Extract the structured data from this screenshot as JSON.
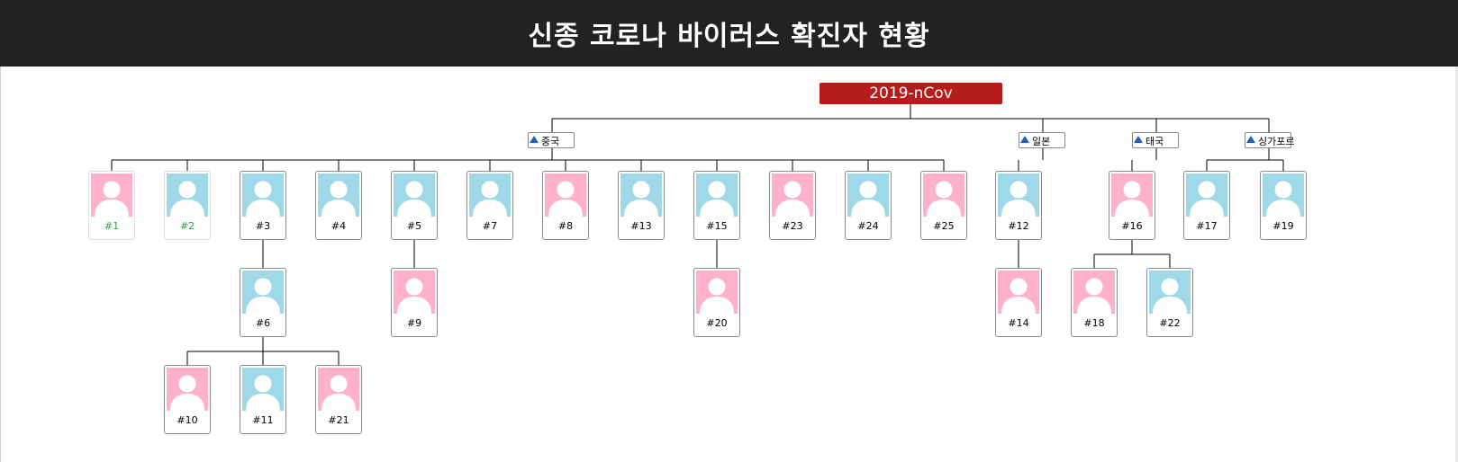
{
  "header": {
    "title": "신종 코로나 바이러스 확진자 현황"
  },
  "colors": {
    "header_bg": "#222222",
    "root_bg": "#b61c1c",
    "male_bg": "#9fd8e6",
    "female_bg": "#ffb1c9",
    "recovered_text": "#2e9e3e",
    "country_marker": "#1f5fbf"
  },
  "tree": {
    "root": {
      "label": "2019-nCov"
    },
    "countries": [
      {
        "id": "china",
        "label": "중국",
        "icon": "triangle-up-icon"
      },
      {
        "id": "japan",
        "label": "일본",
        "icon": "triangle-up-icon"
      },
      {
        "id": "thailand",
        "label": "태국",
        "icon": "triangle-up-icon"
      },
      {
        "id": "singapore",
        "label": "싱가포르",
        "icon": "triangle-up-icon"
      }
    ],
    "cases": [
      {
        "id": "c1",
        "label": "#1",
        "gender": "female",
        "recovered": true,
        "country": "china"
      },
      {
        "id": "c2",
        "label": "#2",
        "gender": "male",
        "recovered": true,
        "country": "china"
      },
      {
        "id": "c3",
        "label": "#3",
        "gender": "male",
        "recovered": false,
        "country": "china"
      },
      {
        "id": "c4",
        "label": "#4",
        "gender": "male",
        "recovered": false,
        "country": "china"
      },
      {
        "id": "c5",
        "label": "#5",
        "gender": "male",
        "recovered": false,
        "country": "china"
      },
      {
        "id": "c7",
        "label": "#7",
        "gender": "male",
        "recovered": false,
        "country": "china"
      },
      {
        "id": "c8",
        "label": "#8",
        "gender": "female",
        "recovered": false,
        "country": "china"
      },
      {
        "id": "c13",
        "label": "#13",
        "gender": "male",
        "recovered": false,
        "country": "china"
      },
      {
        "id": "c15",
        "label": "#15",
        "gender": "male",
        "recovered": false,
        "country": "china"
      },
      {
        "id": "c23",
        "label": "#23",
        "gender": "female",
        "recovered": false,
        "country": "china"
      },
      {
        "id": "c24",
        "label": "#24",
        "gender": "male",
        "recovered": false,
        "country": "china"
      },
      {
        "id": "c25",
        "label": "#25",
        "gender": "female",
        "recovered": false,
        "country": "china"
      },
      {
        "id": "c12",
        "label": "#12",
        "gender": "male",
        "recovered": false,
        "country": "japan"
      },
      {
        "id": "c16",
        "label": "#16",
        "gender": "female",
        "recovered": false,
        "country": "thailand"
      },
      {
        "id": "c17",
        "label": "#17",
        "gender": "male",
        "recovered": false,
        "country": "singapore"
      },
      {
        "id": "c19",
        "label": "#19",
        "gender": "male",
        "recovered": false,
        "country": "singapore"
      },
      {
        "id": "c6",
        "label": "#6",
        "gender": "male",
        "recovered": false,
        "parent": "c3"
      },
      {
        "id": "c9",
        "label": "#9",
        "gender": "female",
        "recovered": false,
        "parent": "c5"
      },
      {
        "id": "c20",
        "label": "#20",
        "gender": "female",
        "recovered": false,
        "parent": "c15"
      },
      {
        "id": "c14",
        "label": "#14",
        "gender": "female",
        "recovered": false,
        "parent": "c12"
      },
      {
        "id": "c18",
        "label": "#18",
        "gender": "female",
        "recovered": false,
        "parent": "c16"
      },
      {
        "id": "c22",
        "label": "#22",
        "gender": "male",
        "recovered": false,
        "parent": "c16"
      },
      {
        "id": "c10",
        "label": "#10",
        "gender": "female",
        "recovered": false,
        "parent": "c6"
      },
      {
        "id": "c11",
        "label": "#11",
        "gender": "male",
        "recovered": false,
        "parent": "c6"
      },
      {
        "id": "c21",
        "label": "#21",
        "gender": "female",
        "recovered": false,
        "parent": "c6"
      }
    ]
  }
}
